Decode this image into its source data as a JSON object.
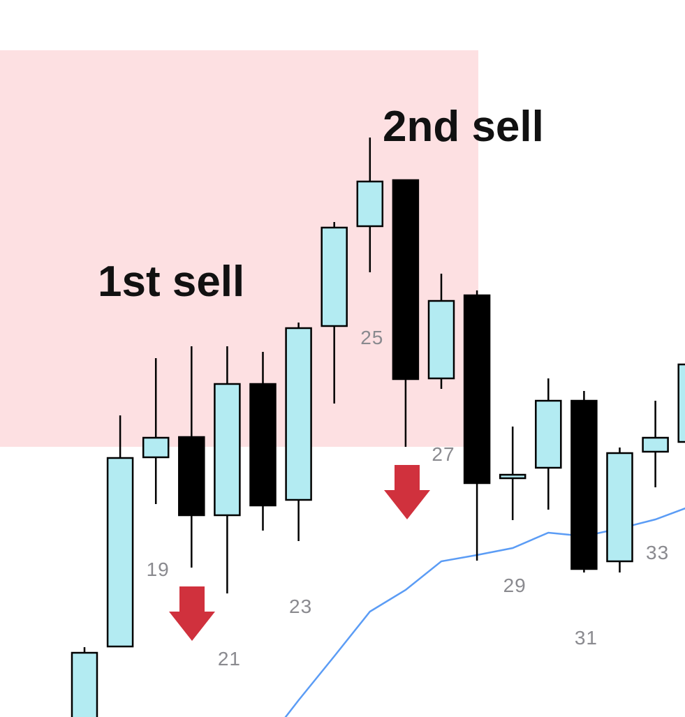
{
  "chart_data": {
    "type": "candlestick",
    "categories": [
      null,
      null,
      "19",
      null,
      "21",
      null,
      "23",
      null,
      "25",
      null,
      "27",
      null,
      "29",
      null,
      "31",
      null,
      "33",
      null
    ],
    "open": [
      -20,
      101,
      372,
      401,
      289,
      477,
      311,
      560,
      703,
      769,
      485,
      604,
      342,
      357,
      453,
      223,
      380,
      394
    ],
    "high": [
      100,
      432,
      514,
      531,
      531,
      523,
      565,
      709,
      830,
      769,
      635,
      611,
      416,
      485,
      467,
      386,
      453,
      505
    ],
    "low": [
      -40,
      101,
      305,
      214,
      177,
      267,
      252,
      449,
      637,
      387,
      470,
      224,
      282,
      297,
      207,
      207,
      329,
      394
    ],
    "close": [
      92,
      371,
      400,
      289,
      477,
      303,
      557,
      701,
      767,
      484,
      596,
      335,
      347,
      453,
      212,
      378,
      400,
      505
    ],
    "up_color": "#b3ebf2",
    "down_color": "#000000",
    "series": [
      {
        "type": "line",
        "color": "#5b9cf5",
        "values": [
          null,
          null,
          null,
          null,
          null,
          -42,
          24,
          87,
          151,
          182,
          223,
          232,
          242,
          264,
          259,
          270,
          283,
          302
        ]
      }
    ],
    "ylim": [
      0,
      1027
    ],
    "annotations": [
      "1st sell",
      "2nd sell"
    ]
  }
}
